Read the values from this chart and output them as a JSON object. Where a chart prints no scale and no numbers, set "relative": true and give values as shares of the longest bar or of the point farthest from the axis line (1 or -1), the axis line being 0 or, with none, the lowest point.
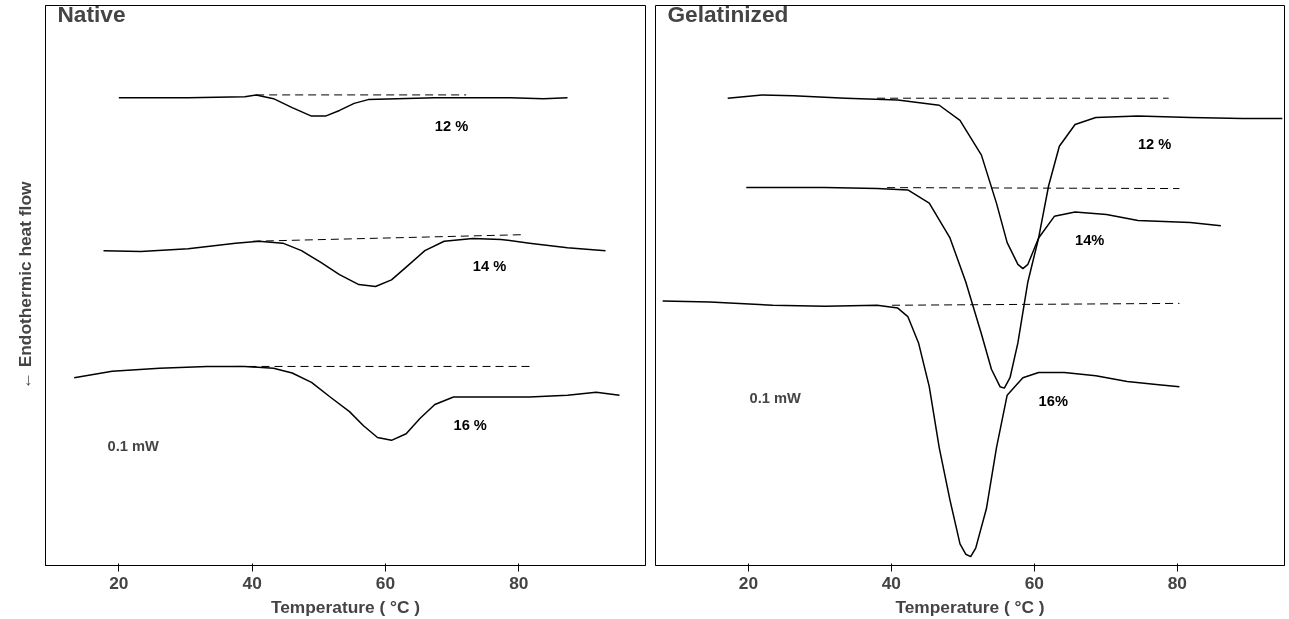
{
  "chart_data": [
    {
      "type": "line",
      "title": "Native",
      "xlabel": "Temperature ( °C )",
      "ylabel": "← Endothermic heat flow",
      "relative": true,
      "xlim": [
        9,
        99
      ],
      "xticks": [
        20,
        40,
        60,
        80
      ],
      "series": [
        {
          "name": "12 %",
          "color": "#000000",
          "line_style": "solid",
          "x": [
            20,
            30.4,
            38.9,
            40.6,
            43.2,
            46,
            48.9,
            51,
            53.1,
            55.3,
            57.4,
            61.7,
            67.4,
            73.1,
            78.7,
            83.7,
            87.3
          ],
          "values": [
            0.994,
            0.994,
            0.996,
            1.0,
            0.992,
            0.973,
            0.955,
            0.955,
            0.967,
            0.982,
            0.99,
            0.992,
            0.994,
            0.994,
            0.994,
            0.992,
            0.994
          ]
        },
        {
          "color": "#000000",
          "line_style": "dashed",
          "x": [
            40.6,
            72.1
          ],
          "values": [
            1.0,
            1.0
          ]
        },
        {
          "name": "14 %",
          "color": "#000000",
          "line_style": "solid",
          "x": [
            17.7,
            23.3,
            30.4,
            37.5,
            41.0,
            44.6,
            47.4,
            50.3,
            53.1,
            56.0,
            58.5,
            60.9,
            63.1,
            65.9,
            68.8,
            73.1,
            77.3,
            81.6,
            87.3,
            93.0
          ],
          "values": [
            0.669,
            0.667,
            0.673,
            0.685,
            0.689,
            0.685,
            0.669,
            0.644,
            0.618,
            0.597,
            0.593,
            0.607,
            0.634,
            0.669,
            0.689,
            0.695,
            0.693,
            0.685,
            0.675,
            0.669
          ]
        },
        {
          "color": "#000000",
          "line_style": "dashed",
          "x": [
            40.1,
            80.6
          ],
          "values": [
            0.689,
            0.703
          ]
        },
        {
          "name": "16 %",
          "color": "#000000",
          "line_style": "solid",
          "x": [
            13.3,
            19.0,
            26.1,
            33.2,
            38.9,
            43.2,
            46.0,
            48.9,
            51.7,
            54.6,
            56.7,
            58.8,
            60.9,
            63.1,
            65.2,
            67.4,
            70.2,
            75.9,
            81.6,
            87.3,
            91.6,
            95.1
          ],
          "values": [
            0.399,
            0.413,
            0.419,
            0.423,
            0.423,
            0.419,
            0.409,
            0.389,
            0.358,
            0.327,
            0.297,
            0.272,
            0.266,
            0.28,
            0.313,
            0.342,
            0.358,
            0.358,
            0.358,
            0.362,
            0.368,
            0.362
          ]
        },
        {
          "color": "#000000",
          "line_style": "dashed",
          "x": [
            37.5,
            81.6
          ],
          "values": [
            0.423,
            0.423
          ]
        }
      ],
      "annotations": [
        "0.1 mW"
      ]
    },
    {
      "type": "line",
      "title": "Gelatinized",
      "xlabel": "Temperature ( °C )",
      "relative": true,
      "xlim": [
        7,
        95
      ],
      "xticks": [
        20,
        40,
        60,
        80
      ],
      "series": [
        {
          "name": "12 %",
          "color": "#000000",
          "line_style": "solid",
          "x": [
            17.1,
            21.9,
            26.3,
            33.6,
            40.9,
            46.7,
            49.6,
            52.6,
            54.7,
            56.2,
            57.7,
            58.4,
            59.1,
            60.6,
            62.0,
            63.5,
            65.7,
            68.6,
            74.5,
            81.8,
            89.1,
            94.7
          ],
          "values": [
            0.993,
            1.0,
            0.998,
            0.993,
            0.989,
            0.978,
            0.946,
            0.872,
            0.77,
            0.686,
            0.64,
            0.631,
            0.64,
            0.696,
            0.807,
            0.891,
            0.937,
            0.952,
            0.955,
            0.952,
            0.95,
            0.95
          ]
        },
        {
          "color": "#000000",
          "line_style": "dashed",
          "x": [
            38.0,
            78.8
          ],
          "values": [
            0.993,
            0.993
          ]
        },
        {
          "name": "14%",
          "color": "#000000",
          "line_style": "solid",
          "x": [
            19.7,
            30.7,
            38.0,
            42.3,
            45.3,
            48.2,
            50.4,
            52.6,
            54.0,
            55.2,
            55.8,
            56.6,
            57.7,
            59.1,
            60.6,
            62.8,
            65.7,
            70.1,
            74.5,
            81.8,
            86.1
          ],
          "values": [
            0.803,
            0.803,
            0.801,
            0.798,
            0.77,
            0.696,
            0.603,
            0.492,
            0.417,
            0.38,
            0.377,
            0.399,
            0.473,
            0.603,
            0.696,
            0.742,
            0.751,
            0.746,
            0.733,
            0.729,
            0.722
          ]
        },
        {
          "color": "#000000",
          "line_style": "dashed",
          "x": [
            39.4,
            80.3
          ],
          "values": [
            0.803,
            0.801
          ]
        },
        {
          "name": "16%",
          "color": "#000000",
          "line_style": "solid",
          "x": [
            8.0,
            14.6,
            23.4,
            30.7,
            38.0,
            40.9,
            42.3,
            43.8,
            45.3,
            46.7,
            48.2,
            49.6,
            50.4,
            51.1,
            51.8,
            53.3,
            54.7,
            56.2,
            58.4,
            60.6,
            64.2,
            68.6,
            73.0,
            77.4,
            80.3
          ],
          "values": [
            0.562,
            0.56,
            0.553,
            0.551,
            0.553,
            0.547,
            0.529,
            0.473,
            0.38,
            0.25,
            0.139,
            0.046,
            0.024,
            0.019,
            0.037,
            0.121,
            0.25,
            0.362,
            0.399,
            0.41,
            0.41,
            0.403,
            0.391,
            0.384,
            0.38
          ]
        },
        {
          "color": "#000000",
          "line_style": "dashed",
          "x": [
            40.1,
            80.3
          ],
          "values": [
            0.553,
            0.557
          ]
        }
      ],
      "annotations": [
        "0.1 mW"
      ]
    }
  ]
}
